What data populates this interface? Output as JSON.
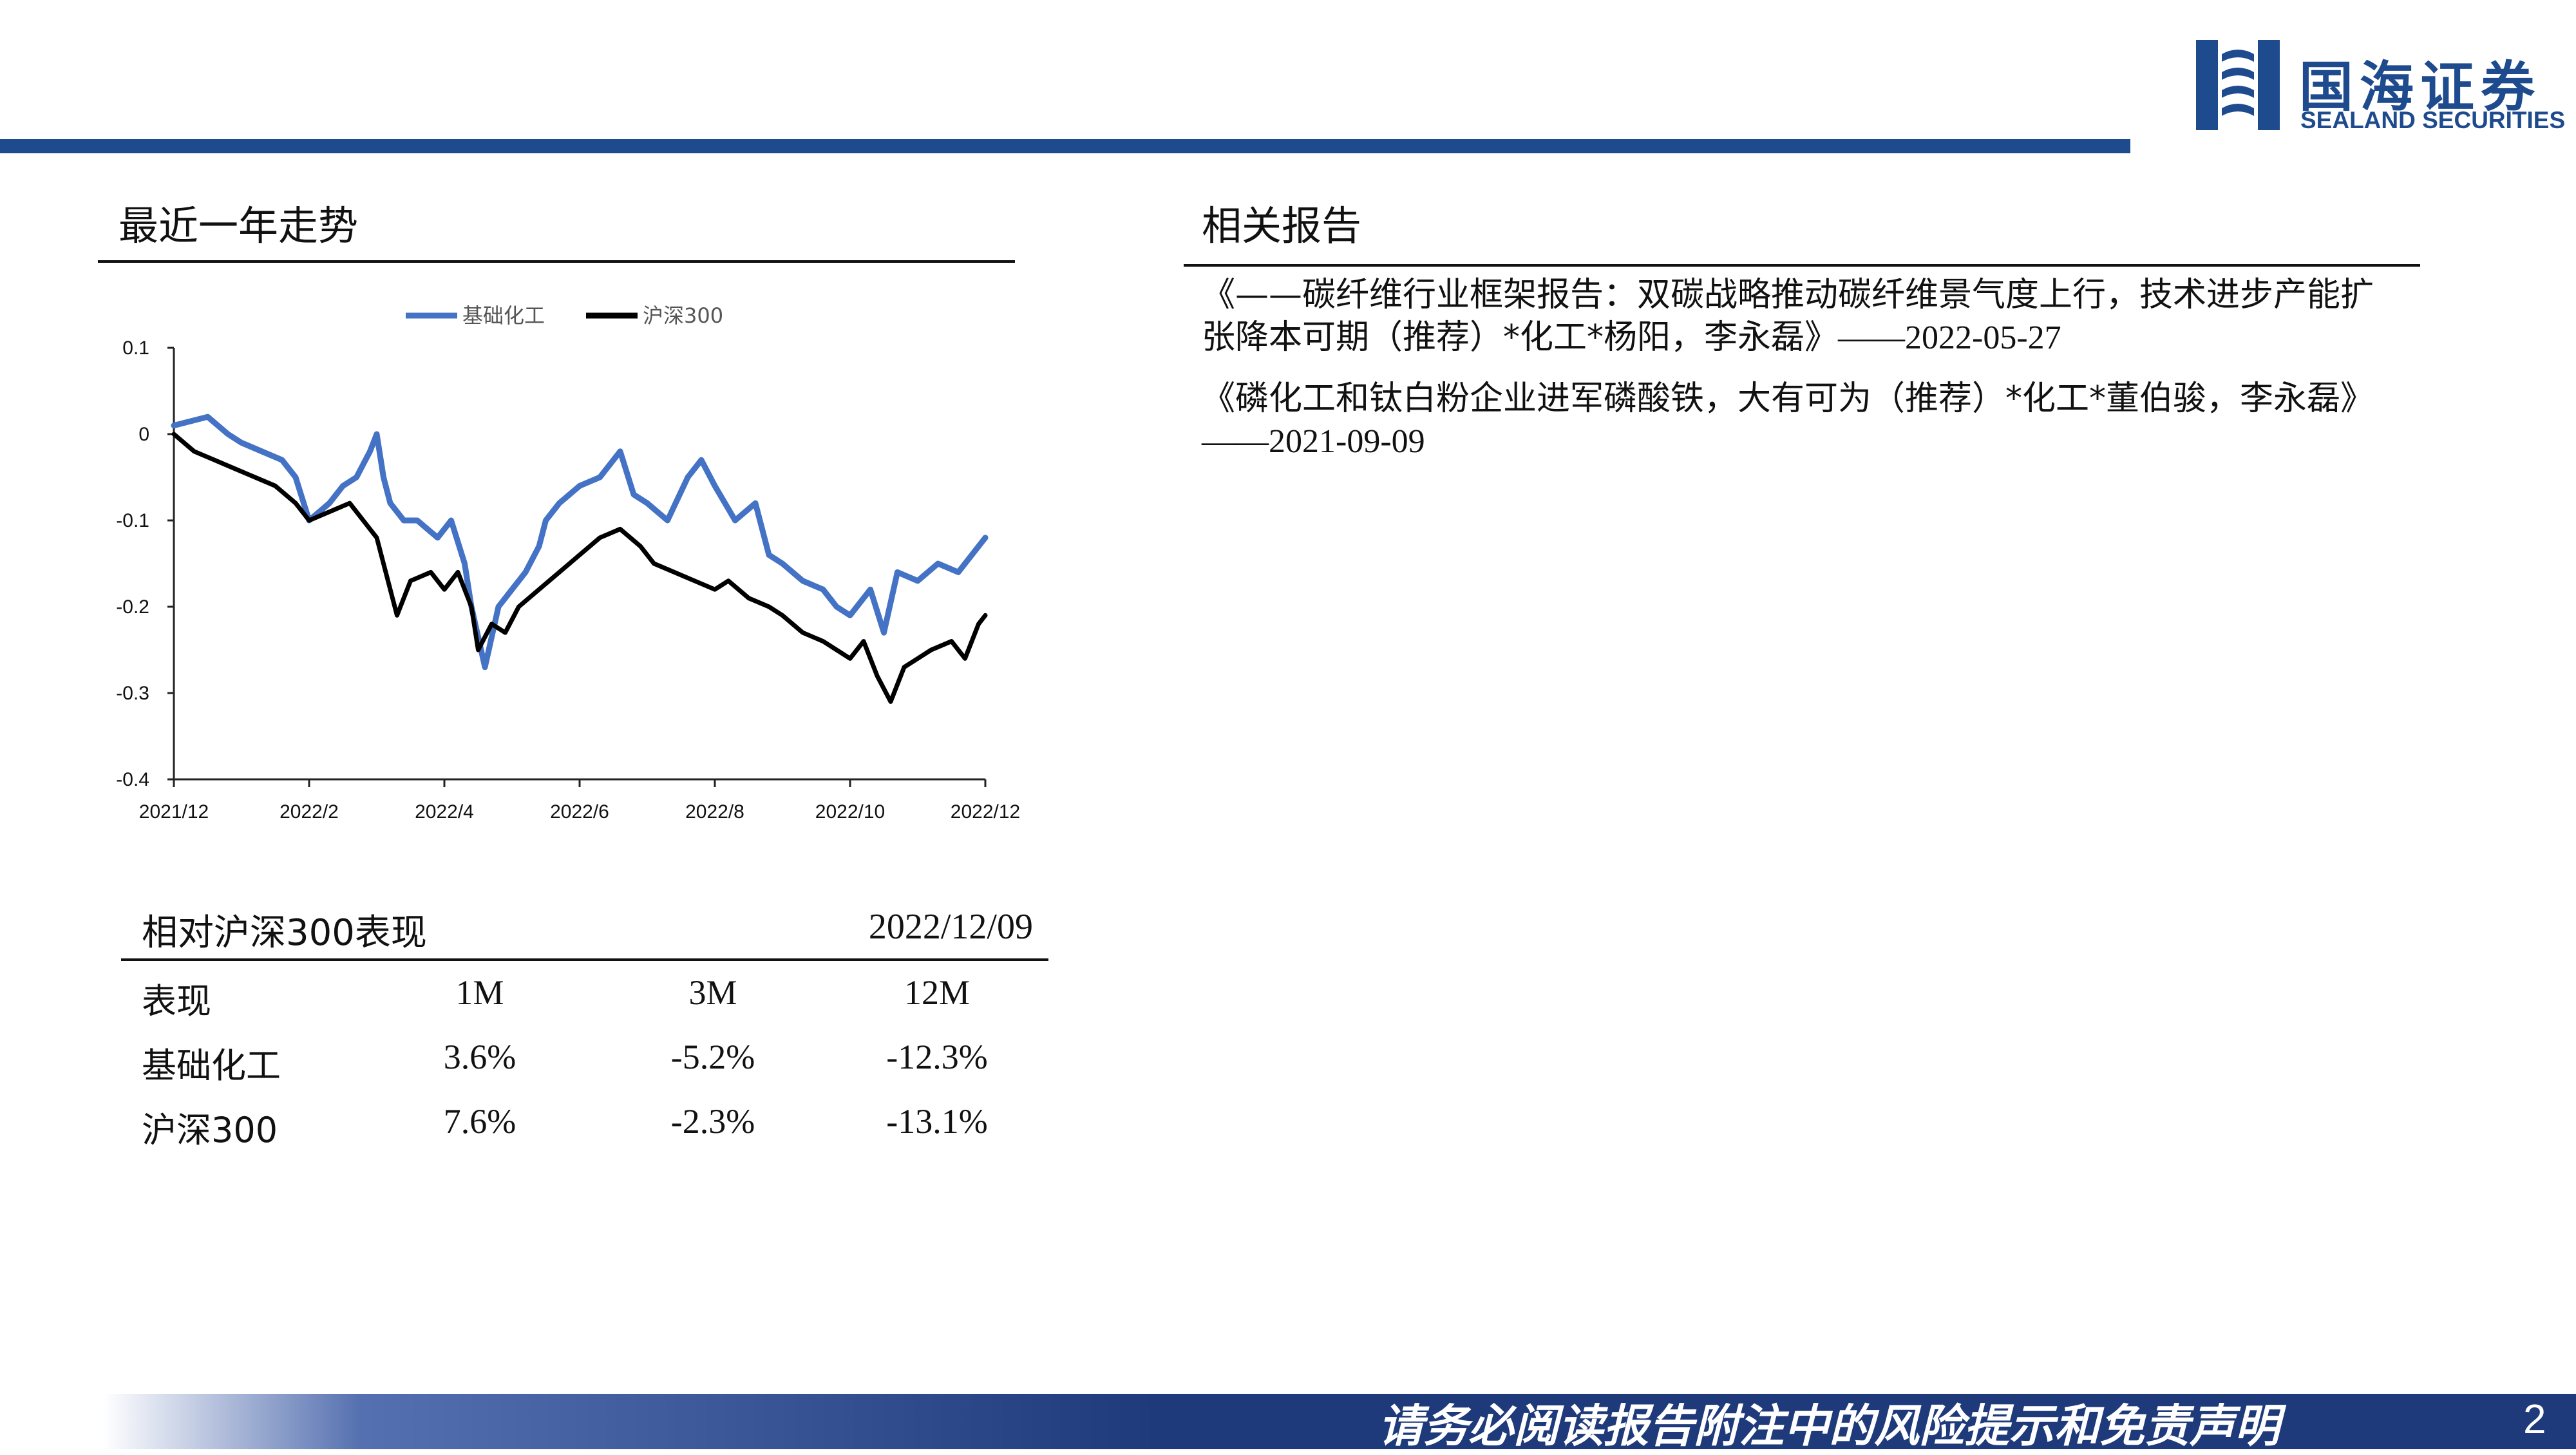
{
  "header": {
    "logo_cn": "国海证券",
    "logo_en": "SEALAND SECURITIES",
    "brand_color": "#1e4a8e"
  },
  "chart_section": {
    "title": "最近一年走势"
  },
  "reports_section": {
    "title": "相关报告",
    "items": [
      {
        "text": "《——碳纤维行业框架报告：双碳战略推动碳纤维景气度上行，技术进步产能扩张降本可期（推荐）*化工*杨阳，李永磊》",
        "date": "——2022-05-27"
      },
      {
        "text": "《磷化工和钛白粉企业进军磷酸铁，大有可为（推荐）*化工*董伯骏，李永磊》",
        "date": "——2021-09-09"
      }
    ]
  },
  "performance": {
    "title": "相对沪深300表现",
    "date": "2022/12/09",
    "columns": [
      "表现",
      "1M",
      "3M",
      "12M"
    ],
    "rows": [
      {
        "label": "基础化工",
        "values": [
          "3.6%",
          "-5.2%",
          "-12.3%"
        ]
      },
      {
        "label": "沪深300",
        "values": [
          "7.6%",
          "-2.3%",
          "-13.1%"
        ]
      }
    ]
  },
  "chart_data": {
    "type": "line",
    "x_ticks": [
      "2021/12",
      "2022/2",
      "2022/4",
      "2022/6",
      "2022/8",
      "2022/10",
      "2022/12"
    ],
    "y_ticks": [
      "0.1",
      "0",
      "-0.1",
      "-0.2",
      "-0.3",
      "-0.4"
    ],
    "ylim": [
      -0.4,
      0.1
    ],
    "legend_position": "top-center",
    "series": [
      {
        "name": "基础化工",
        "color": "#4472c4",
        "x": [
          0,
          0.5,
          0.8,
          1.0,
          1.3,
          1.6,
          1.8,
          2.0,
          2.3,
          2.5,
          2.7,
          2.9,
          3.0,
          3.1,
          3.2,
          3.4,
          3.6,
          3.9,
          4.1,
          4.3,
          4.4,
          4.6,
          4.8,
          5.0,
          5.2,
          5.4,
          5.5,
          5.7,
          6.0,
          6.3,
          6.6,
          6.8,
          7.0,
          7.3,
          7.6,
          7.8,
          8.0,
          8.3,
          8.6,
          8.8,
          9.0,
          9.3,
          9.6,
          9.8,
          10.0,
          10.3,
          10.5,
          10.7,
          11.0,
          11.3,
          11.6,
          11.8,
          12.0
        ],
        "y": [
          0.01,
          0.02,
          0.0,
          -0.01,
          -0.02,
          -0.03,
          -0.05,
          -0.1,
          -0.08,
          -0.06,
          -0.05,
          -0.02,
          0.0,
          -0.05,
          -0.08,
          -0.1,
          -0.1,
          -0.12,
          -0.1,
          -0.15,
          -0.2,
          -0.27,
          -0.2,
          -0.18,
          -0.16,
          -0.13,
          -0.1,
          -0.08,
          -0.06,
          -0.05,
          -0.02,
          -0.07,
          -0.08,
          -0.1,
          -0.05,
          -0.03,
          -0.06,
          -0.1,
          -0.08,
          -0.14,
          -0.15,
          -0.17,
          -0.18,
          -0.2,
          -0.21,
          -0.18,
          -0.23,
          -0.16,
          -0.17,
          -0.15,
          -0.16,
          -0.14,
          -0.12
        ]
      },
      {
        "name": "沪深300",
        "color": "#000000",
        "x": [
          0,
          0.3,
          0.6,
          0.9,
          1.2,
          1.5,
          1.8,
          2.0,
          2.3,
          2.6,
          2.8,
          3.0,
          3.1,
          3.2,
          3.3,
          3.5,
          3.8,
          4.0,
          4.2,
          4.4,
          4.5,
          4.7,
          4.9,
          5.1,
          5.4,
          5.7,
          6.0,
          6.3,
          6.6,
          6.9,
          7.1,
          7.4,
          7.7,
          8.0,
          8.2,
          8.5,
          8.8,
          9.0,
          9.3,
          9.6,
          9.8,
          10.0,
          10.2,
          10.4,
          10.6,
          10.8,
          11.0,
          11.2,
          11.5,
          11.7,
          11.9,
          12.0
        ],
        "y": [
          0.0,
          -0.02,
          -0.03,
          -0.04,
          -0.05,
          -0.06,
          -0.08,
          -0.1,
          -0.09,
          -0.08,
          -0.1,
          -0.12,
          -0.15,
          -0.18,
          -0.21,
          -0.17,
          -0.16,
          -0.18,
          -0.16,
          -0.2,
          -0.25,
          -0.22,
          -0.23,
          -0.2,
          -0.18,
          -0.16,
          -0.14,
          -0.12,
          -0.11,
          -0.13,
          -0.15,
          -0.16,
          -0.17,
          -0.18,
          -0.17,
          -0.19,
          -0.2,
          -0.21,
          -0.23,
          -0.24,
          -0.25,
          -0.26,
          -0.24,
          -0.28,
          -0.31,
          -0.27,
          -0.26,
          -0.25,
          -0.24,
          -0.26,
          -0.22,
          -0.21
        ]
      }
    ]
  },
  "footer": {
    "disclaimer": "请务必阅读报告附注中的风险提示和免责声明",
    "page_number": "2"
  }
}
